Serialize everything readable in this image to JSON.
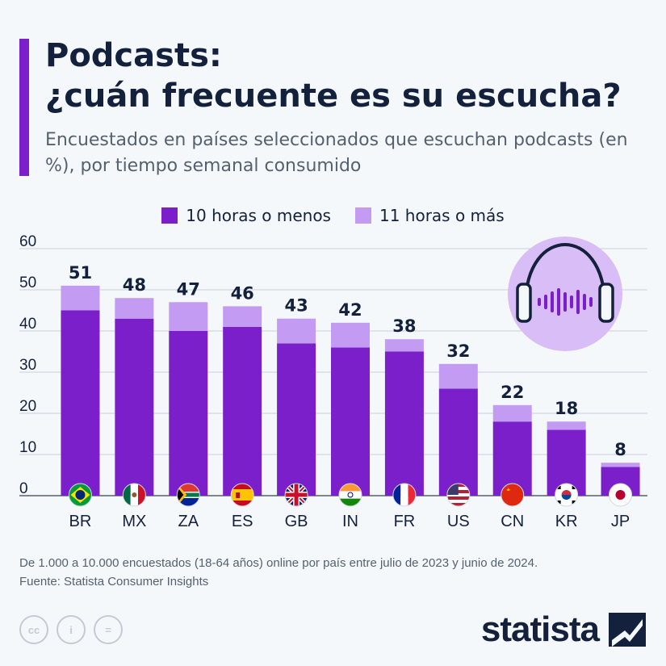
{
  "header": {
    "title_line1": "Podcasts:",
    "title_line2": "¿cuán frecuente es su escucha?",
    "subtitle": "Encuestados en países seleccionados que escuchan podcasts (en %), por tiempo semanal consumido"
  },
  "colors": {
    "accent": "#7a1fc9",
    "dark_series": "#7a1fc9",
    "light_series": "#c39bf3",
    "text": "#14213d"
  },
  "chart_data": {
    "type": "bar",
    "stacked": true,
    "categories": [
      "BR",
      "MX",
      "ZA",
      "ES",
      "GB",
      "IN",
      "FR",
      "US",
      "CN",
      "KR",
      "JP"
    ],
    "series": [
      {
        "name": "10 horas o menos",
        "values": [
          45,
          43,
          40,
          41,
          37,
          36,
          35,
          26,
          18,
          16,
          7
        ]
      },
      {
        "name": "11 horas o más",
        "values": [
          6,
          5,
          7,
          5,
          6,
          6,
          3,
          6,
          4,
          2,
          1
        ]
      }
    ],
    "totals": [
      51,
      48,
      47,
      46,
      43,
      42,
      38,
      32,
      22,
      18,
      8
    ],
    "y_ticks": [
      0,
      10,
      20,
      30,
      40,
      50,
      60
    ],
    "ylim": [
      0,
      60
    ],
    "legend_position": "top-center",
    "grid": true
  },
  "icons": {
    "headphones": "headphones-icon",
    "flags": [
      "brazil-flag-icon",
      "mexico-flag-icon",
      "south-africa-flag-icon",
      "spain-flag-icon",
      "uk-flag-icon",
      "india-flag-icon",
      "france-flag-icon",
      "usa-flag-icon",
      "china-flag-icon",
      "korea-flag-icon",
      "japan-flag-icon"
    ]
  },
  "footer": {
    "note": "De 1.000 a 10.000 encuestados (18-64 años) online por país entre julio de 2023 y junio de 2024.",
    "source": "Fuente: Statista Consumer Insights",
    "license_icons": [
      "cc",
      "i",
      "="
    ],
    "brand": "statista"
  }
}
